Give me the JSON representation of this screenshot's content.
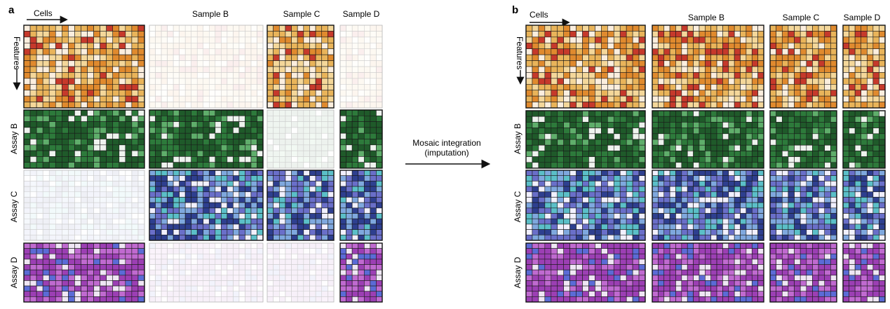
{
  "panel_a": {
    "letter": "a",
    "cells_label": "Cells",
    "features_label": "Features",
    "sample_headers": [
      "Sample B",
      "Sample C",
      "Sample D"
    ],
    "assay_labels": [
      "Assay B",
      "Assay C",
      "Assay D"
    ]
  },
  "arrow": {
    "line1": "Mosaic integration",
    "line2": "(imputation)"
  },
  "panel_b": {
    "letter": "b",
    "cells_label": "Cells",
    "features_label": "Features",
    "sample_headers": [
      "Sample B",
      "Sample C",
      "Sample D"
    ],
    "assay_labels": [
      "Assay B",
      "Assay C",
      "Assay D"
    ]
  },
  "palettes": {
    "assay_a": [
      "#c6392b",
      "#e08a2e",
      "#e9b45a",
      "#f4d79a",
      "#fbeede"
    ],
    "assay_b": [
      "#1f5a2a",
      "#2d7a3b",
      "#5fae6b",
      "#eef3ee"
    ],
    "assay_c": [
      "#2e3f8f",
      "#6a6fc9",
      "#7fa8de",
      "#5bbfc8",
      "#f1f0ff"
    ],
    "assay_d": [
      "#9c3fb4",
      "#c06ad0",
      "#5b6bd6",
      "#efe6f4"
    ]
  }
}
